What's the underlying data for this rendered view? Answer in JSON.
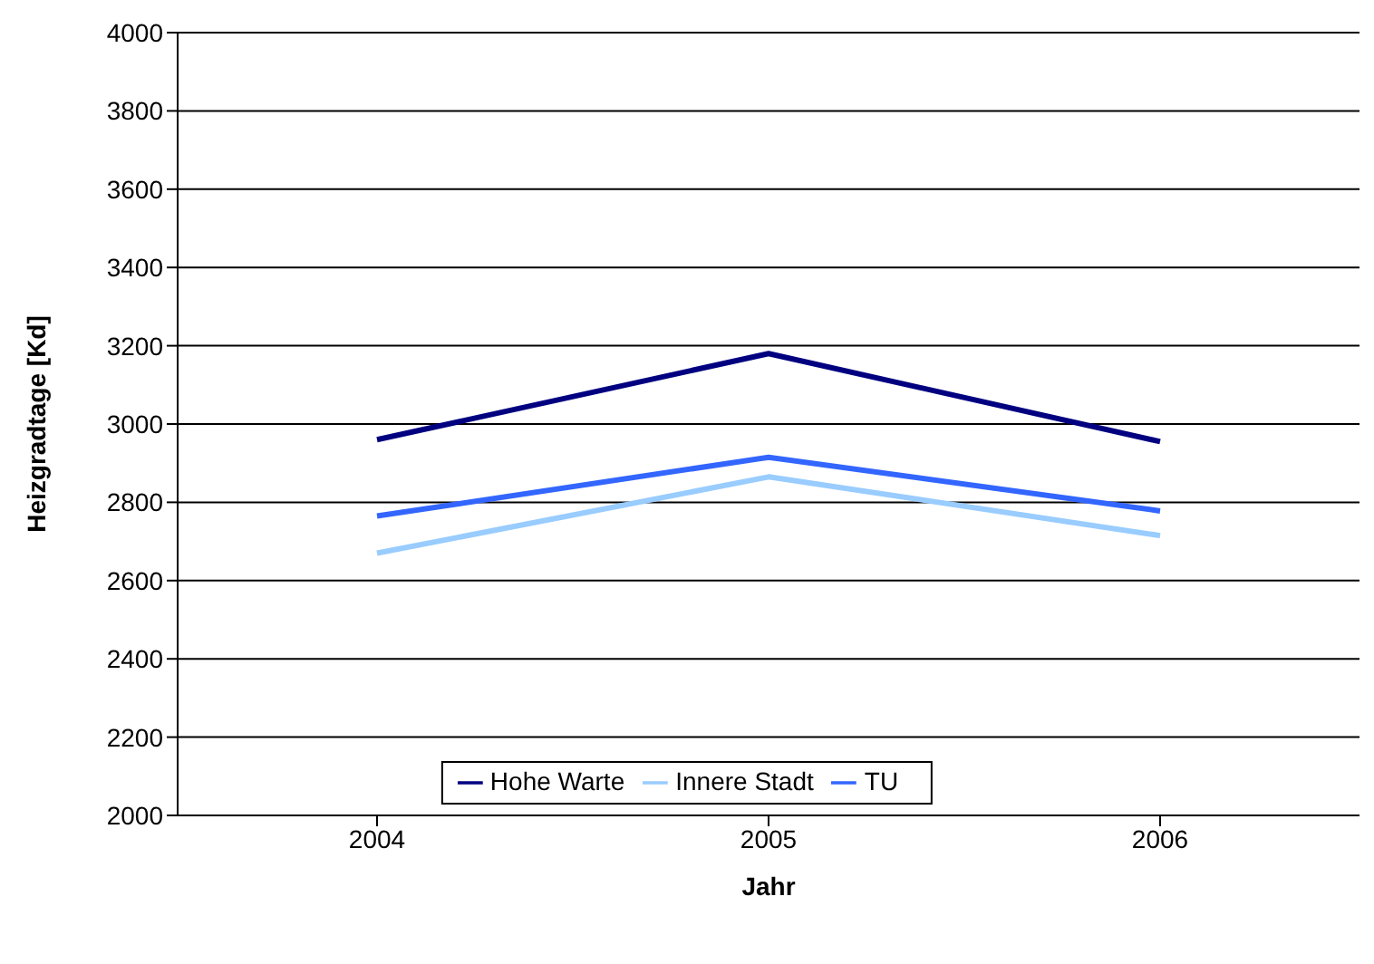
{
  "chart_data": {
    "type": "line",
    "xlabel": "Jahr",
    "ylabel": "Heizgradtage [Kd]",
    "categories": [
      "2004",
      "2005",
      "2006"
    ],
    "series": [
      {
        "name": "Hohe Warte",
        "color": "#000080",
        "values": [
          2960,
          3180,
          2955
        ]
      },
      {
        "name": "Innere Stadt",
        "color": "#99ccff",
        "values": [
          2670,
          2865,
          2715
        ]
      },
      {
        "name": "TU",
        "color": "#3366ff",
        "values": [
          2765,
          2915,
          2778
        ]
      }
    ],
    "ylim": [
      2000,
      4000
    ],
    "yticks": [
      2000,
      2200,
      2400,
      2600,
      2800,
      3000,
      3200,
      3400,
      3600,
      3800,
      4000
    ],
    "grid": "y",
    "legend": "bottom",
    "marker": "none",
    "line_style": "solid"
  }
}
